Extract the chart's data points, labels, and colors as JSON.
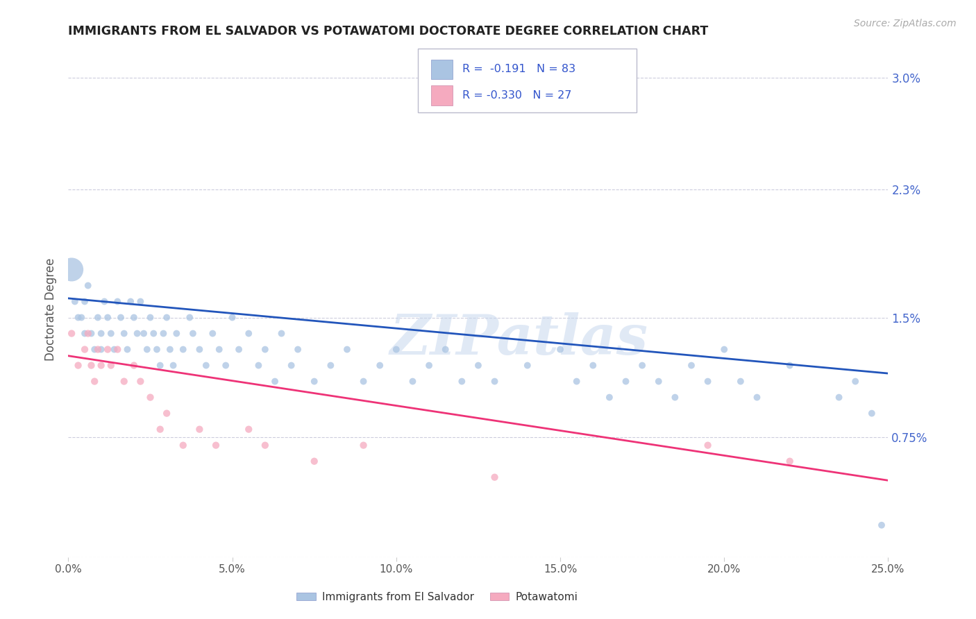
{
  "title": "IMMIGRANTS FROM EL SALVADOR VS POTAWATOMI DOCTORATE DEGREE CORRELATION CHART",
  "source": "Source: ZipAtlas.com",
  "ylabel": "Doctorate Degree",
  "xlim": [
    0.0,
    0.25
  ],
  "ylim": [
    0.0,
    0.031
  ],
  "xtick_vals": [
    0.0,
    0.05,
    0.1,
    0.15,
    0.2,
    0.25
  ],
  "xtick_labels": [
    "0.0%",
    "5.0%",
    "10.0%",
    "15.0%",
    "20.0%",
    "25.0%"
  ],
  "ytick_vals": [
    0.0,
    0.0075,
    0.015,
    0.023,
    0.03
  ],
  "ytick_labels": [
    "",
    "0.75%",
    "1.5%",
    "2.3%",
    "3.0%"
  ],
  "blue_R": -0.191,
  "blue_N": 83,
  "pink_R": -0.33,
  "pink_N": 27,
  "blue_color": "#aac4e2",
  "pink_color": "#f5aabf",
  "blue_line_color": "#2255bb",
  "pink_line_color": "#ee3377",
  "watermark": "ZIPatlas",
  "background_color": "#ffffff",
  "grid_color": "#ccccdd",
  "title_color": "#222222",
  "source_color": "#aaaaaa",
  "axis_label_color": "#555555",
  "ytick_color": "#4466cc",
  "xtick_color": "#555555",
  "legend_blue_label": "Immigrants from El Salvador",
  "legend_pink_label": "Potawatomi",
  "blue_line_y0": 0.0162,
  "blue_line_y1": 0.0115,
  "pink_line_y0": 0.0126,
  "pink_line_y1": 0.0048,
  "blue_x": [
    0.001,
    0.002,
    0.003,
    0.004,
    0.005,
    0.005,
    0.006,
    0.007,
    0.008,
    0.009,
    0.01,
    0.01,
    0.011,
    0.012,
    0.013,
    0.014,
    0.015,
    0.016,
    0.017,
    0.018,
    0.019,
    0.02,
    0.021,
    0.022,
    0.023,
    0.024,
    0.025,
    0.026,
    0.027,
    0.028,
    0.029,
    0.03,
    0.031,
    0.032,
    0.033,
    0.035,
    0.037,
    0.038,
    0.04,
    0.042,
    0.044,
    0.046,
    0.048,
    0.05,
    0.052,
    0.055,
    0.058,
    0.06,
    0.063,
    0.065,
    0.068,
    0.07,
    0.075,
    0.08,
    0.085,
    0.09,
    0.095,
    0.1,
    0.105,
    0.11,
    0.115,
    0.12,
    0.125,
    0.13,
    0.14,
    0.15,
    0.155,
    0.16,
    0.165,
    0.17,
    0.175,
    0.18,
    0.185,
    0.19,
    0.195,
    0.2,
    0.205,
    0.21,
    0.22,
    0.235,
    0.24,
    0.245,
    0.248
  ],
  "blue_y": [
    0.018,
    0.016,
    0.015,
    0.015,
    0.016,
    0.014,
    0.017,
    0.014,
    0.013,
    0.015,
    0.014,
    0.013,
    0.016,
    0.015,
    0.014,
    0.013,
    0.016,
    0.015,
    0.014,
    0.013,
    0.016,
    0.015,
    0.014,
    0.016,
    0.014,
    0.013,
    0.015,
    0.014,
    0.013,
    0.012,
    0.014,
    0.015,
    0.013,
    0.012,
    0.014,
    0.013,
    0.015,
    0.014,
    0.013,
    0.012,
    0.014,
    0.013,
    0.012,
    0.015,
    0.013,
    0.014,
    0.012,
    0.013,
    0.011,
    0.014,
    0.012,
    0.013,
    0.011,
    0.012,
    0.013,
    0.011,
    0.012,
    0.013,
    0.011,
    0.012,
    0.013,
    0.011,
    0.012,
    0.011,
    0.012,
    0.013,
    0.011,
    0.012,
    0.01,
    0.011,
    0.012,
    0.011,
    0.01,
    0.012,
    0.011,
    0.013,
    0.011,
    0.01,
    0.012,
    0.01,
    0.011,
    0.009,
    0.002
  ],
  "blue_sizes": [
    600,
    50,
    50,
    50,
    50,
    50,
    50,
    50,
    50,
    50,
    50,
    50,
    50,
    50,
    50,
    50,
    50,
    50,
    50,
    50,
    50,
    50,
    50,
    50,
    50,
    50,
    50,
    50,
    50,
    50,
    50,
    50,
    50,
    50,
    50,
    50,
    50,
    50,
    50,
    50,
    50,
    50,
    50,
    50,
    50,
    50,
    50,
    50,
    50,
    50,
    50,
    50,
    50,
    50,
    50,
    50,
    50,
    50,
    50,
    50,
    50,
    50,
    50,
    50,
    50,
    50,
    50,
    50,
    50,
    50,
    50,
    50,
    50,
    50,
    50,
    50,
    50,
    50,
    50,
    50,
    50,
    50,
    50
  ],
  "pink_x": [
    0.001,
    0.003,
    0.005,
    0.006,
    0.007,
    0.008,
    0.009,
    0.01,
    0.012,
    0.013,
    0.015,
    0.017,
    0.02,
    0.022,
    0.025,
    0.028,
    0.03,
    0.035,
    0.04,
    0.045,
    0.055,
    0.06,
    0.075,
    0.09,
    0.13,
    0.195,
    0.22
  ],
  "pink_y": [
    0.014,
    0.012,
    0.013,
    0.014,
    0.012,
    0.011,
    0.013,
    0.012,
    0.013,
    0.012,
    0.013,
    0.011,
    0.012,
    0.011,
    0.01,
    0.008,
    0.009,
    0.007,
    0.008,
    0.007,
    0.008,
    0.007,
    0.006,
    0.007,
    0.005,
    0.007,
    0.006
  ]
}
